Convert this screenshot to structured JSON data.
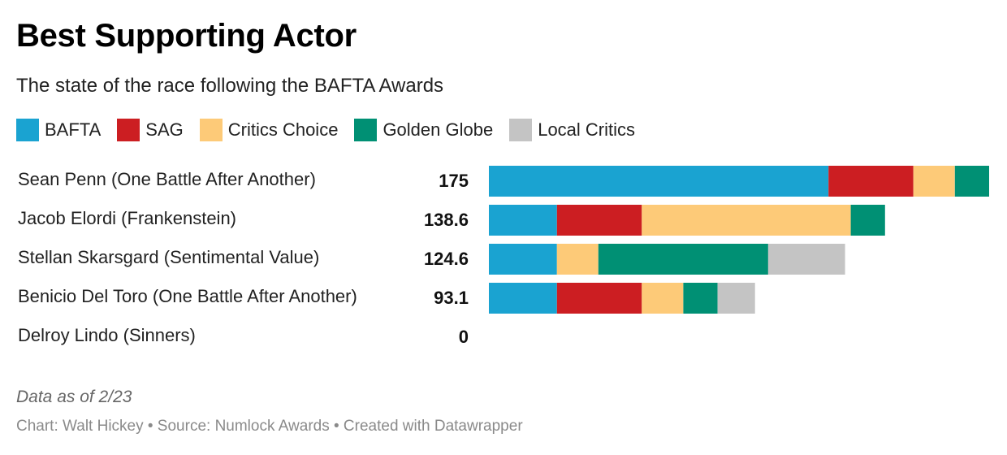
{
  "header": {
    "title": "Best Supporting Actor",
    "subtitle": "The state of the race following the BAFTA Awards"
  },
  "legend": [
    {
      "label": "BAFTA",
      "color": "#1aa3d1"
    },
    {
      "label": "SAG",
      "color": "#cc1e22"
    },
    {
      "label": "Critics Choice",
      "color": "#fdca78"
    },
    {
      "label": "Golden Globe",
      "color": "#009074"
    },
    {
      "label": "Local Critics",
      "color": "#c4c4c4"
    }
  ],
  "footer": {
    "note": "Data as of 2/23",
    "credit": "Chart: Walt Hickey • Source: Numlock Awards • Created with Datawrapper"
  },
  "chart_data": {
    "type": "bar",
    "orientation": "horizontal",
    "stacked": true,
    "title": "Best Supporting Actor",
    "subtitle": "The state of the race following the BAFTA Awards",
    "legend_position": "top",
    "categories": [
      "Sean Penn (One Battle After Another)",
      "Jacob Elordi (Frankenstein)",
      "Stellan Skarsgard (Sentimental Value)",
      "Benicio Del Toro (One Battle After Another)",
      "Delroy Lindo (Sinners)"
    ],
    "totals": [
      "175",
      "138.6",
      "124.6",
      "93.1",
      "0"
    ],
    "xlim": [
      0,
      175
    ],
    "series": [
      {
        "name": "BAFTA",
        "color": "#1aa3d1",
        "values": [
          118.8,
          23.8,
          23.8,
          23.8,
          0
        ]
      },
      {
        "name": "SAG",
        "color": "#cc1e22",
        "values": [
          29.7,
          29.7,
          0,
          29.7,
          0
        ]
      },
      {
        "name": "Critics Choice",
        "color": "#fdca78",
        "values": [
          14.5,
          73.1,
          14.5,
          14.5,
          0
        ]
      },
      {
        "name": "Golden Globe",
        "color": "#009074",
        "values": [
          12.0,
          12.0,
          59.4,
          12.0,
          0
        ]
      },
      {
        "name": "Local Critics",
        "color": "#c4c4c4",
        "values": [
          0,
          0,
          26.9,
          13.1,
          0
        ]
      }
    ]
  }
}
